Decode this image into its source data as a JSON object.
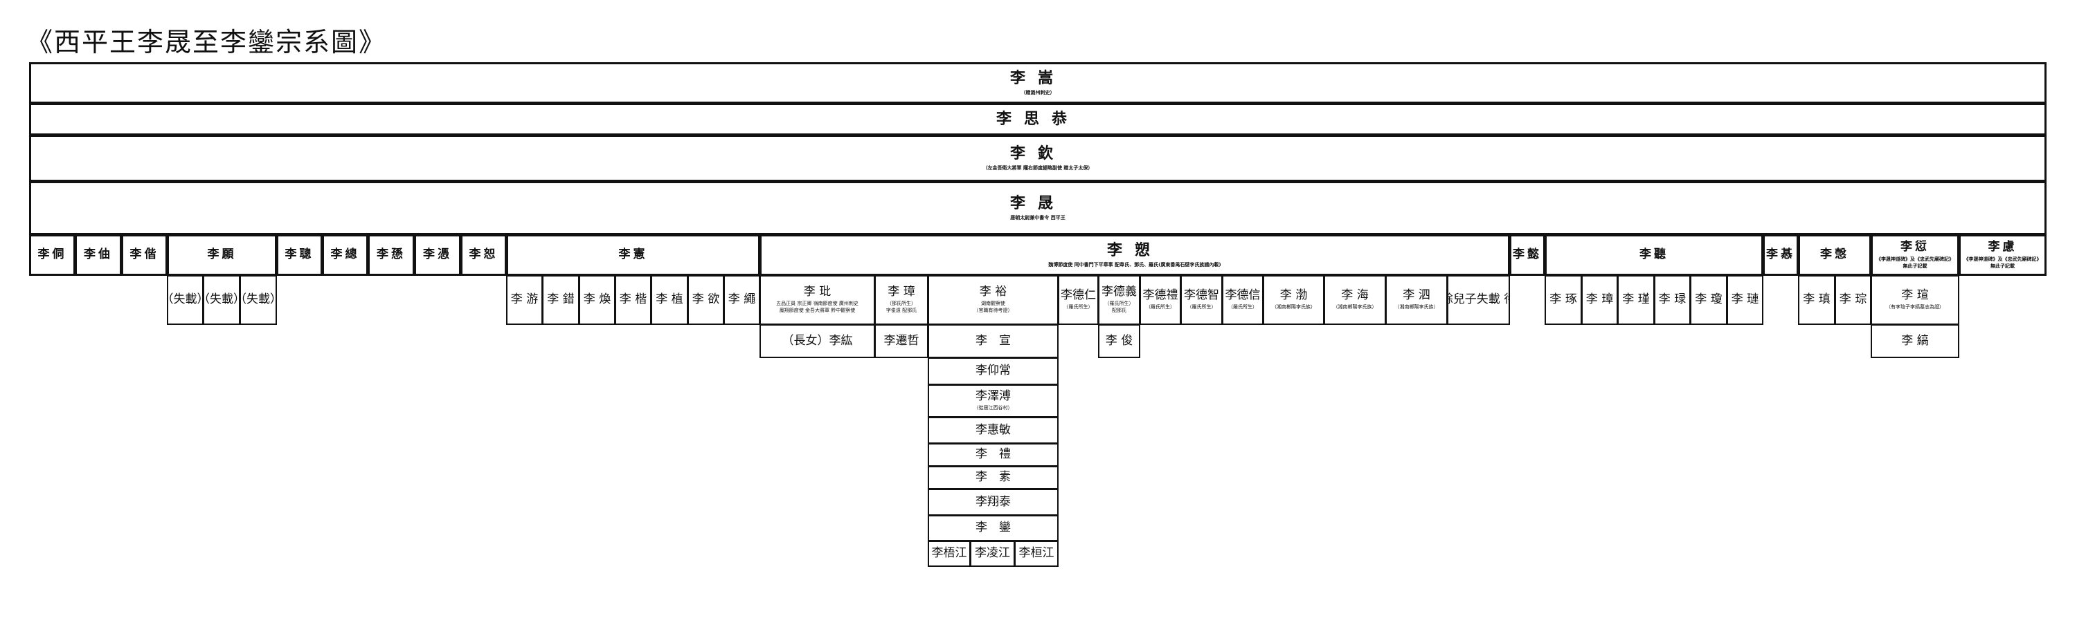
{
  "title": "《西平王李晟至李鑾宗系圖》",
  "cells": {
    "g1": {
      "name": "李嵩",
      "note": "（贈潞州刺史）"
    },
    "g2": {
      "name": "李思恭"
    },
    "g3": {
      "name": "李欽",
      "note": "（左金吾衛大將軍 隴右節度經略副使 贈太子太保）"
    },
    "g4": {
      "name": "李晟",
      "note": "唐朝太尉兼中書令 西平王"
    },
    "s_tong": {
      "name": "李侗"
    },
    "s_zhou": {
      "name": "李伷"
    },
    "s_xie": {
      "name": "李偕"
    },
    "s_yuan": {
      "name": "李願"
    },
    "s_cong": {
      "name": "李聰"
    },
    "s_zong": {
      "name": "李總"
    },
    "s_xun": {
      "name": "李愻"
    },
    "s_ping": {
      "name": "李憑"
    },
    "s_shu": {
      "name": "李恕"
    },
    "s_xian": {
      "name": "李憲"
    },
    "s_su": {
      "name": "李愬",
      "note": "魏博節度使 同中書門下平章事 配韋氏、鄧氏、羅氏(廣東番禺石壁李氏族譜內載)"
    },
    "s_yi": {
      "name": "李懿"
    },
    "s_ting": {
      "name": "李聽"
    },
    "s_ji": {
      "name": "李惎"
    },
    "s_que": {
      "name": "李愨"
    },
    "s_qian": {
      "name": "李愆",
      "note": "《李晟神道碑》及《忠武先廟碑記》\n無此子記載"
    },
    "s_lv": {
      "name": "李慮",
      "note": "《李晟神道碑》及《忠武先廟碑記》\n無此子記載"
    },
    "yuan_k1": {
      "name": "（失載）"
    },
    "yuan_k2": {
      "name": "（失載）"
    },
    "yuan_k3": {
      "name": "（失載）"
    },
    "xian_k1": {
      "name": "李 游"
    },
    "xian_k2": {
      "name": "李 錯"
    },
    "xian_k3": {
      "name": "李 煥"
    },
    "xian_k4": {
      "name": "李 楷"
    },
    "xian_k5": {
      "name": "李 植"
    },
    "xian_k6": {
      "name": "李 欲"
    },
    "xian_k7": {
      "name": "李 繩"
    },
    "su_pin": {
      "name": "李 玭",
      "note": "五品正員 宗正卿 嶺南節度使 廣州刺史\n鳳翔節度使 金吾大將軍 黔中觀察使"
    },
    "su_zhang": {
      "name": "李 璋",
      "note": "（鄧氏所生）\n字俊遠 配鄧氏"
    },
    "su_yu": {
      "name": "李 裕",
      "note": "湖南觀察使\n（官職有待考證）"
    },
    "su_deren": {
      "name": "李德仁",
      "note": "（羅氏所生）"
    },
    "su_deyi": {
      "name": "李德義",
      "note": "（羅氏所生）\n配鄧氏"
    },
    "su_deli": {
      "name": "李德禮",
      "note": "（羅氏所生）"
    },
    "su_dezhi": {
      "name": "李德智",
      "note": "（羅氏所生）"
    },
    "su_dexin": {
      "name": "李德信",
      "note": "（羅氏所生）"
    },
    "su_bo": {
      "name": "李 渤",
      "note": "（湘南郴陽李氏族）"
    },
    "su_hai": {
      "name": "李 海",
      "note": "（湘南郴陽李氏族）"
    },
    "su_si": {
      "name": "李 泗",
      "note": "（湘南郴陽李氏族）"
    },
    "su_rest": {
      "name": "其餘兒子失載 待考"
    },
    "ting_k1": {
      "name": "李 琢"
    },
    "ting_k2": {
      "name": "李 璋"
    },
    "ting_k3": {
      "name": "李 瑾"
    },
    "ting_k4": {
      "name": "李 琭"
    },
    "ting_k5": {
      "name": "李 瓊"
    },
    "ting_k6": {
      "name": "李 璉"
    },
    "que_k1": {
      "name": "李 瑱"
    },
    "que_k2": {
      "name": "李 琮"
    },
    "qian_xuan": {
      "name": "李 瑄",
      "note": "（有李瑄子李縞墓志為證）"
    },
    "pin_hong": {
      "name": "（長女）李紘"
    },
    "zhang_qianzhe": {
      "name": "李遷哲"
    },
    "yu_xuan": {
      "name": "李　宣"
    },
    "deyi_jun": {
      "name": "李 俊"
    },
    "xuan_gao": {
      "name": "李 縞"
    },
    "l_yangchang": {
      "name": "李仰常"
    },
    "l_zepu": {
      "name": "李澤溥",
      "note": "（徙居江西谷村）"
    },
    "l_huimin": {
      "name": "李惠敏"
    },
    "l_li": {
      "name": "李　禮"
    },
    "l_su": {
      "name": "李　素"
    },
    "l_xiangtai": {
      "name": "李翔泰"
    },
    "l_luan": {
      "name": "李　鑾"
    },
    "l_wujiang": {
      "name": "李梧江"
    },
    "l_lingjiang": {
      "name": "李凌江"
    },
    "l_huanjiang": {
      "name": "李桓江"
    }
  }
}
